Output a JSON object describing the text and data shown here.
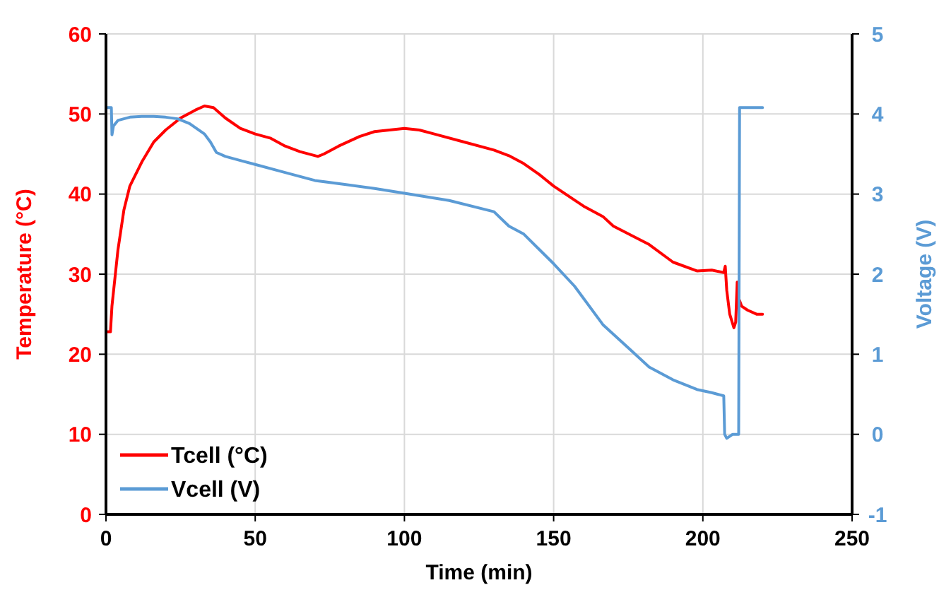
{
  "chart_data": {
    "type": "line",
    "xlabel": "Time (min)",
    "ylabel": "Temperature (°C)",
    "y2label": "Voltage (V)",
    "xlim": [
      0,
      250
    ],
    "xticks": [
      0,
      50,
      100,
      150,
      200,
      250
    ],
    "ylim": [
      0,
      60
    ],
    "yticks": [
      0,
      10,
      20,
      30,
      40,
      50,
      60
    ],
    "y2lim": [
      -1,
      5
    ],
    "y2ticks": [
      -1,
      0,
      1,
      2,
      3,
      4,
      5
    ],
    "grid": true,
    "legend": "bottom left",
    "line_style": "solid",
    "marker": "none",
    "series": [
      {
        "name": "Tcell (°C)",
        "color": "#ff0000",
        "x": [
          0,
          1.5,
          2,
          4,
          6,
          8,
          12,
          16,
          20,
          25,
          30,
          33,
          36,
          40,
          45,
          50,
          55,
          60,
          65,
          71,
          73,
          78,
          85,
          90,
          100,
          105,
          110,
          120,
          130,
          135,
          140,
          145,
          150,
          160,
          166.5,
          170,
          182,
          190,
          198,
          203,
          207,
          207.5,
          208,
          209,
          210.4,
          211,
          211.5,
          212,
          213,
          215,
          218,
          220
        ],
        "values": [
          22.8,
          22.8,
          26,
          33,
          38,
          41,
          44,
          46.5,
          48,
          49.5,
          50.5,
          51,
          50.8,
          49.5,
          48.2,
          47.5,
          47,
          46,
          45.3,
          44.7,
          45,
          46,
          47.2,
          47.8,
          48.2,
          48,
          47.5,
          46.5,
          45.5,
          44.8,
          43.8,
          42.5,
          41,
          38.5,
          37.2,
          36,
          33.7,
          31.5,
          30.4,
          30.5,
          30.2,
          31,
          28,
          25,
          23.3,
          24,
          29,
          27,
          26,
          25.5,
          25,
          25
        ]
      },
      {
        "name": "Vcell (V)",
        "color": "#5b9bd5",
        "axis": "y2",
        "x": [
          0,
          1.8,
          2,
          2.5,
          4,
          8,
          12,
          16,
          20,
          24,
          28,
          33,
          35,
          37,
          40,
          45,
          50,
          60,
          70,
          80,
          90,
          100,
          115,
          130,
          135,
          140,
          150,
          157,
          166.5,
          175,
          182,
          190,
          198,
          203,
          207,
          207.3,
          208,
          210,
          212,
          212.3,
          215,
          220
        ],
        "values": [
          4.08,
          4.08,
          3.74,
          3.85,
          3.92,
          3.96,
          3.97,
          3.97,
          3.96,
          3.94,
          3.88,
          3.75,
          3.65,
          3.52,
          3.47,
          3.42,
          3.37,
          3.27,
          3.17,
          3.12,
          3.07,
          3.01,
          2.92,
          2.78,
          2.6,
          2.5,
          2.13,
          1.85,
          1.37,
          1.08,
          0.84,
          0.68,
          0.56,
          0.52,
          0.48,
          0,
          -0.05,
          0,
          0,
          4.08,
          4.08,
          4.08
        ]
      }
    ]
  }
}
